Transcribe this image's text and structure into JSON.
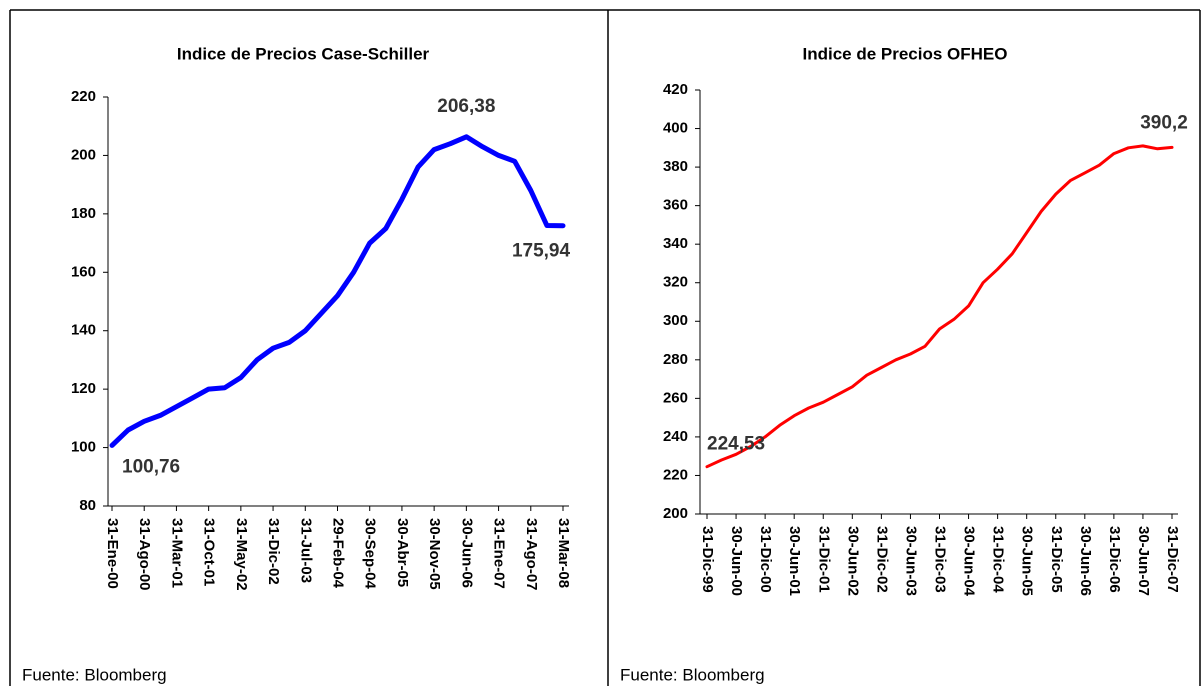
{
  "chart_data": [
    {
      "type": "line",
      "title": "Indice de Precios Case-Schiller",
      "categories": [
        "31-Ene-00",
        null,
        "31-Ago-00",
        null,
        "31-Mar-01",
        null,
        "31-Oct-01",
        null,
        "31-May-02",
        null,
        "31-Dic-02",
        null,
        "31-Jul-03",
        null,
        "29-Feb-04",
        null,
        "30-Sep-04",
        null,
        "30-Abr-05",
        null,
        "30-Nov-05",
        null,
        "30-Jun-06",
        null,
        "31-Ene-07",
        null,
        "31-Ago-07",
        null,
        "31-Mar-08"
      ],
      "series": [
        {
          "name": "Case-Schiller",
          "color": "#0000ff",
          "values": [
            100.76,
            106,
            109,
            111,
            114,
            117,
            120,
            120.5,
            124,
            130,
            134,
            136,
            140,
            146,
            152,
            160,
            170,
            175,
            185,
            196,
            202,
            204,
            206.38,
            203,
            200,
            198,
            188,
            176,
            175.94
          ],
          "value_labels": [
            "100,76",
            null,
            null,
            null,
            null,
            null,
            null,
            null,
            null,
            null,
            null,
            null,
            null,
            null,
            null,
            null,
            null,
            null,
            null,
            null,
            null,
            null,
            "206,38",
            null,
            null,
            null,
            null,
            null,
            "175,94"
          ]
        }
      ],
      "ylim": [
        80,
        220
      ],
      "yticks": [
        80,
        100,
        120,
        140,
        160,
        180,
        200,
        220
      ],
      "source": "Fuente: Bloomberg"
    },
    {
      "type": "line",
      "title": "Indice de Precios OFHEO",
      "categories": [
        "31-Dic-99",
        null,
        "30-Jun-00",
        null,
        "31-Dic-00",
        null,
        "30-Jun-01",
        null,
        "31-Dic-01",
        null,
        "30-Jun-02",
        null,
        "31-Dic-02",
        null,
        "30-Jun-03",
        null,
        "31-Dic-03",
        null,
        "30-Jun-04",
        null,
        "31-Dic-04",
        null,
        "30-Jun-05",
        null,
        "31-Dic-05",
        null,
        "30-Jun-06",
        null,
        "31-Dic-06",
        null,
        "30-Jun-07",
        null,
        "31-Dic-07"
      ],
      "series": [
        {
          "name": "OFHEO",
          "color": "#ff0000",
          "values": [
            224.53,
            228,
            231,
            235,
            240,
            246,
            251,
            255,
            258,
            262,
            266,
            272,
            276,
            280,
            283,
            287,
            296,
            301,
            308,
            320,
            327,
            335,
            346,
            357,
            366,
            373,
            377,
            381,
            387,
            390,
            391,
            389.5,
            390.2
          ],
          "value_labels": [
            "224,53",
            null,
            null,
            null,
            null,
            null,
            null,
            null,
            null,
            null,
            null,
            null,
            null,
            null,
            null,
            null,
            null,
            null,
            null,
            null,
            null,
            null,
            null,
            null,
            null,
            null,
            null,
            null,
            null,
            null,
            null,
            null,
            "390,2"
          ]
        }
      ],
      "ylim": [
        200,
        420
      ],
      "yticks": [
        200,
        220,
        240,
        260,
        280,
        300,
        320,
        340,
        360,
        380,
        400,
        420
      ],
      "source": "Fuente: Bloomberg"
    }
  ]
}
